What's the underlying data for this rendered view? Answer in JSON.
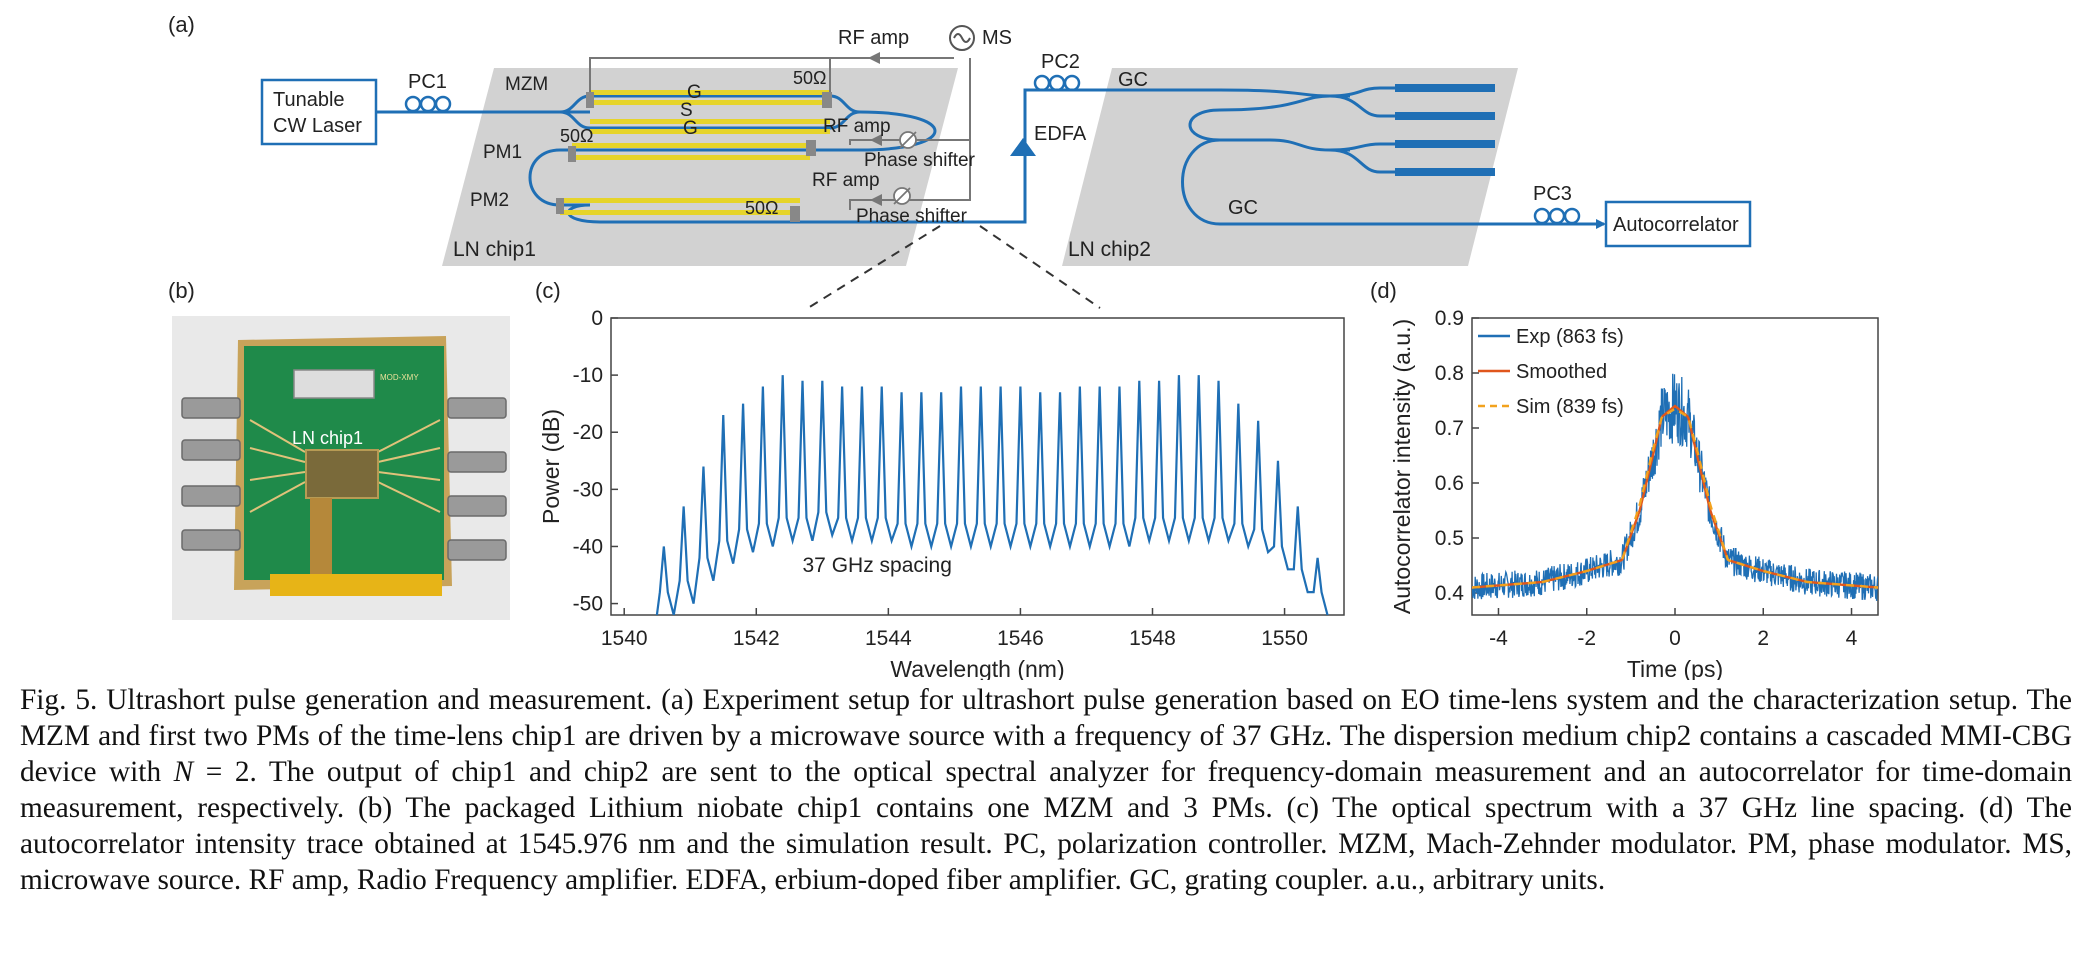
{
  "panels": {
    "a": "(a)",
    "b": "(b)",
    "c": "(c)",
    "d": "(d)"
  },
  "setup": {
    "laser": [
      "Tunable",
      "CW Laser"
    ],
    "pc1": "PC1",
    "pc2": "PC2",
    "pc3": "PC3",
    "mzm": "MZM",
    "pm1": "PM1",
    "pm2": "PM2",
    "gsg": [
      "G",
      "S",
      "G"
    ],
    "ohm_mzm": "50Ω",
    "ohm_pm1": "50Ω",
    "ohm_pm2": "50Ω",
    "rf_amp_top": "RF amp",
    "rf_amp_pm1": "RF amp",
    "rf_amp_pm2": "RF amp",
    "ms": "MS",
    "phase_shifter_1": "Phase shifter",
    "phase_shifter_2": "Phase shifter",
    "edfa": "EDFA",
    "gc_top": "GC",
    "gc_bottom": "GC",
    "chip1": "LN chip1",
    "chip2": "LN chip2",
    "autocorrelator": "Autocorrelator"
  },
  "photo": {
    "chip_label": "LN chip1",
    "pcb_tag": "MOD-XMY"
  },
  "colors": {
    "trace": "#1f6fb5",
    "smoothed": "#e0561c",
    "sim": "#f2a21e",
    "chip": "#d2d2d2",
    "electrode": "#e6d42a",
    "pcb": "#1f8a4a"
  },
  "chart_data": [
    {
      "type": "line",
      "panel": "c",
      "xlabel": "Wavelength (nm)",
      "ylabel": "Power (dB)",
      "xlim": [
        1539.8,
        1550.9
      ],
      "ylim": [
        -52,
        0
      ],
      "xticks": [
        "1540",
        "1542",
        "1544",
        "1546",
        "1548",
        "1550"
      ],
      "yticks": [
        "0",
        "-10",
        "-20",
        "-30",
        "-40",
        "-50"
      ],
      "annotation": "37 GHz spacing",
      "comb": {
        "peaks_x": [
          1540.6,
          1540.9,
          1541.2,
          1541.5,
          1541.8,
          1542.1,
          1542.4,
          1542.7,
          1543.0,
          1543.3,
          1543.6,
          1543.9,
          1544.2,
          1544.5,
          1544.8,
          1545.1,
          1545.4,
          1545.7,
          1546.0,
          1546.3,
          1546.6,
          1546.9,
          1547.2,
          1547.5,
          1547.8,
          1548.1,
          1548.4,
          1548.7,
          1549.0,
          1549.3,
          1549.6,
          1549.9,
          1550.2,
          1550.5
        ],
        "peaks_y": [
          -40,
          -33,
          -26,
          -17,
          -15,
          -12,
          -10,
          -11,
          -11,
          -12,
          -12,
          -12,
          -13,
          -13,
          -13,
          -12,
          -12,
          -12,
          -12,
          -13,
          -13,
          -12,
          -12,
          -12,
          -11,
          -11,
          -10,
          -10,
          -11,
          -15,
          -18,
          -25,
          -33,
          -42
        ],
        "valleys_y": [
          -52,
          -50,
          -46,
          -43,
          -41,
          -40,
          -39,
          -39,
          -38,
          -39,
          -39,
          -39,
          -40,
          -40,
          -40,
          -40,
          -40,
          -40,
          -40,
          -40,
          -40,
          -40,
          -40,
          -40,
          -39,
          -39,
          -39,
          -39,
          -39,
          -40,
          -41,
          -44,
          -48,
          -52
        ]
      }
    },
    {
      "type": "line",
      "panel": "d",
      "xlabel": "Time (ps)",
      "ylabel": "Autocorrelator intensity (a.u.)",
      "xlim": [
        -4.6,
        4.6
      ],
      "ylim": [
        0.36,
        0.9
      ],
      "xticks": [
        "-4",
        "-2",
        "0",
        "2",
        "4"
      ],
      "yticks": [
        "0.4",
        "0.5",
        "0.6",
        "0.7",
        "0.8",
        "0.9"
      ],
      "legend_position": "top-left",
      "series": [
        {
          "name": "Exp (863 fs)",
          "x": [
            -4.6,
            -3,
            -2,
            -1.2,
            -0.8,
            -0.5,
            -0.3,
            0,
            0.3,
            0.5,
            0.8,
            1.2,
            2,
            3,
            4.6
          ],
          "values": [
            0.41,
            0.42,
            0.44,
            0.46,
            0.55,
            0.65,
            0.72,
            0.74,
            0.72,
            0.65,
            0.55,
            0.46,
            0.44,
            0.42,
            0.41
          ],
          "noise": 0.025
        },
        {
          "name": "Smoothed",
          "x": [
            -4.6,
            -3,
            -2,
            -1.2,
            -0.8,
            -0.5,
            -0.3,
            0,
            0.3,
            0.5,
            0.8,
            1.2,
            2,
            3,
            4.6
          ],
          "values": [
            0.41,
            0.42,
            0.44,
            0.46,
            0.55,
            0.65,
            0.72,
            0.74,
            0.72,
            0.65,
            0.55,
            0.46,
            0.44,
            0.42,
            0.41
          ]
        },
        {
          "name": "Sim (839 fs)",
          "x": [
            -4.6,
            -3,
            -2,
            -1.2,
            -0.8,
            -0.5,
            -0.3,
            0,
            0.3,
            0.5,
            0.8,
            1.2,
            2,
            3,
            4.6
          ],
          "values": [
            0.41,
            0.42,
            0.44,
            0.46,
            0.56,
            0.66,
            0.72,
            0.735,
            0.72,
            0.66,
            0.56,
            0.46,
            0.44,
            0.42,
            0.41
          ]
        }
      ]
    }
  ],
  "caption": {
    "text_1": "Fig. 5.  Ultrashort pulse generation and measurement. (a) Experiment setup for ultrashort pulse generation based on EO time-lens system and the characterization setup. The MZM and first two PMs of the time-lens chip1 are driven by a microwave source with a frequency of 37 GHz. The dispersion medium chip2 contains a cascaded MMI-CBG device with ",
    "italic_n": "N",
    "text_2": " = 2. The output of chip1 and chip2 are sent to the optical spectral analyzer for frequency-domain measurement and an autocorrelator for time-domain measurement, respectively. (b) The packaged Lithium niobate chip1 contains one MZM and 3 PMs. (c) The optical spectrum with a 37 GHz line spacing. (d) The autocorrelator intensity trace obtained at 1545.976 nm and the simulation result. PC, polarization controller. MZM, Mach-Zehnder modulator. PM, phase modulator. MS, microwave source. RF amp, Radio Frequency amplifier. EDFA, erbium-doped fiber amplifier. GC, grating coupler. a.u., arbitrary units."
  }
}
